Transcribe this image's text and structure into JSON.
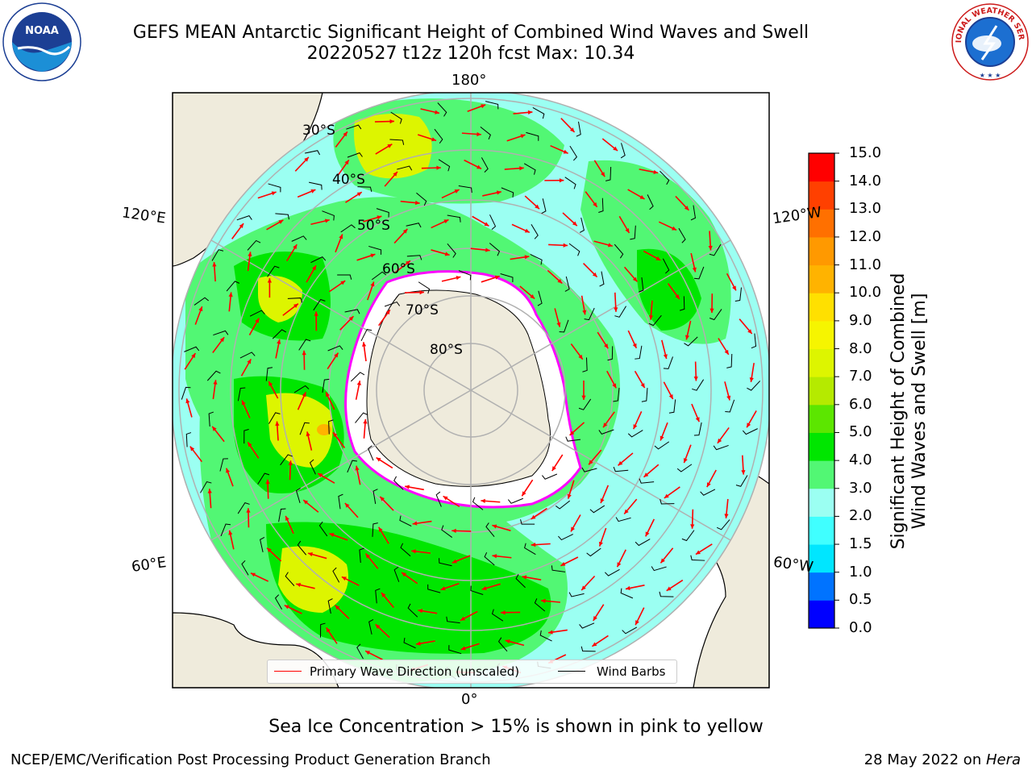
{
  "header": {
    "title_line1": "GEFS MEAN Antarctic Significant Height of Combined Wind Waves and Swell",
    "title_line2": "20220527 t12z 120h fcst   Max: 10.34"
  },
  "logos": {
    "noaa_text": "NOAA",
    "nws_text": "NATIONAL WEATHER SERVICE"
  },
  "map": {
    "type": "polar stereographic, South Pole",
    "longitude_labels": {
      "top": "180°",
      "bottom": "0°",
      "upper_left": "120°E",
      "upper_right": "120°W",
      "lower_left": "60°E",
      "lower_right": "60°W"
    },
    "latitude_labels": [
      "30°S",
      "40°S",
      "50°S",
      "60°S",
      "70°S",
      "80°S"
    ],
    "grid": true,
    "max_value": 10.34
  },
  "legend": {
    "wave_label": "Primary Wave Direction (unscaled)",
    "wind_label": "Wind Barbs",
    "wave_color": "#ff0000",
    "wind_color": "#000000"
  },
  "colorbar": {
    "label_line1": "Significant Height of Combined",
    "label_line2": "Wind Waves and Swell [m]",
    "ticks": [
      "15.0",
      "14.0",
      "13.0",
      "12.0",
      "11.0",
      "10.0",
      "9.0",
      "8.0",
      "7.0",
      "6.0",
      "5.0",
      "4.0",
      "3.0",
      "2.0",
      "1.5",
      "1.0",
      "0.5",
      "0.0"
    ],
    "colors": [
      "#0000ff",
      "#0073ff",
      "#00e6ff",
      "#40ffff",
      "#9bfff2",
      "#52f774",
      "#00e600",
      "#5ce600",
      "#b5ea00",
      "#ddf500",
      "#f6f500",
      "#ffe000",
      "#ffb300",
      "#ff9900",
      "#ff7000",
      "#ff4000",
      "#ff0000"
    ]
  },
  "caption": "Sea Ice Concentration > 15% is shown in pink to yellow",
  "footer": {
    "left": "NCEP/EMC/Verification Post Processing Product Generation Branch",
    "right_prefix": "28 May 2022 on ",
    "right_host": "Hera"
  }
}
